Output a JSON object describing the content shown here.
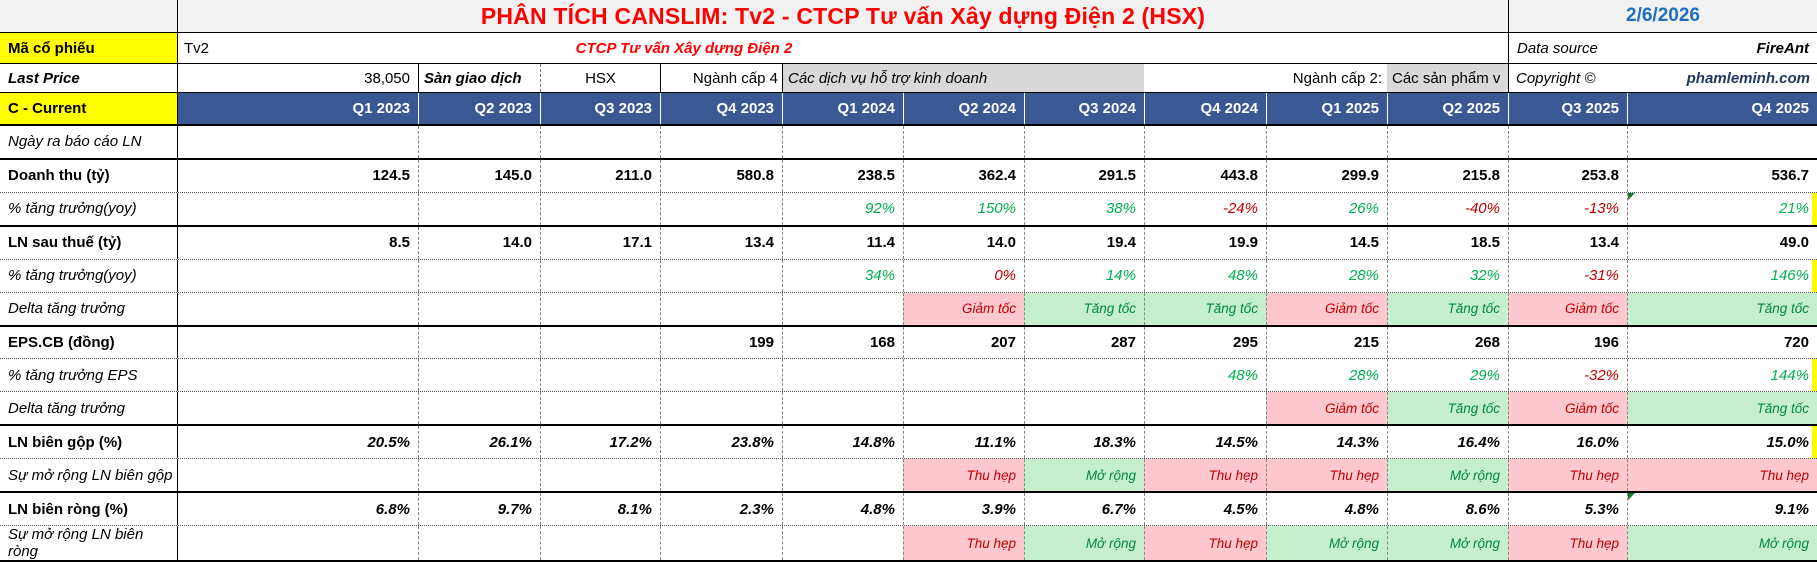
{
  "title": "PHÂN TÍCH CANSLIM: Tv2 - CTCP Tư vấn Xây dựng Điện 2 (HSX)",
  "report_date": "2/6/2026",
  "info": {
    "ticker_label": "Mã cổ phiếu",
    "ticker": "Tv2",
    "company_name": "CTCP Tư vấn Xây dựng Điện 2",
    "data_source_label": "Data source",
    "data_source": "FireAnt",
    "last_price_label": "Last Price",
    "last_price": "38,050",
    "exchange_label": "Sàn giao dịch",
    "exchange": "HSX",
    "industry4_label": "Ngành cấp 4",
    "industry4": "Các dịch vụ hỗ trợ kinh doanh",
    "industry2_label": "Ngành cấp 2:",
    "industry2": "Các sản phẩm v",
    "copyright_label": "Copyright ©",
    "copyright_owner": "phamleminh.com"
  },
  "colors": {
    "title_red": "#FF0000",
    "date_blue": "#1F6FC0",
    "header_blue": "#3A5894",
    "highlight_yellow": "#FFFF00",
    "gray_cell": "#D9D9D9",
    "positive_green": "#00B050",
    "negative_red": "#C00000",
    "good_bg": "#C6EFCE",
    "bad_bg": "#FFC7CE"
  },
  "table": {
    "section_label": "C - Current",
    "quarters": [
      "Q1 2023",
      "Q2 2023",
      "Q3 2023",
      "Q4 2023",
      "Q1 2024",
      "Q2 2024",
      "Q3 2024",
      "Q4 2024",
      "Q1 2025",
      "Q2 2025",
      "Q3 2025",
      "Q4 2025"
    ],
    "rows": [
      {
        "key": "ngay-ra-bao-cao-ln",
        "label": "Ngày ra báo cáo LN",
        "label_style": "italic",
        "value_style": "growth",
        "border_top": "thin",
        "cells": [
          {
            "t": ""
          },
          {
            "t": ""
          },
          {
            "t": ""
          },
          {
            "t": ""
          },
          {
            "t": ""
          },
          {
            "t": ""
          },
          {
            "t": ""
          },
          {
            "t": ""
          },
          {
            "t": ""
          },
          {
            "t": ""
          },
          {
            "t": ""
          },
          {
            "t": ""
          }
        ]
      },
      {
        "key": "doanh-thu",
        "label": "Doanh thu (tỷ)",
        "label_style": "bold",
        "value_style": "value",
        "border_top": "thick",
        "cells": [
          {
            "t": "124.5"
          },
          {
            "t": "145.0"
          },
          {
            "t": "211.0"
          },
          {
            "t": "580.8"
          },
          {
            "t": "238.5"
          },
          {
            "t": "362.4"
          },
          {
            "t": "291.5"
          },
          {
            "t": "443.8"
          },
          {
            "t": "299.9"
          },
          {
            "t": "215.8"
          },
          {
            "t": "253.8"
          },
          {
            "t": "536.7"
          }
        ]
      },
      {
        "key": "tang-truong-doanh-thu",
        "label": "% tăng trưởng(yoy)",
        "label_style": "italic",
        "value_style": "growth",
        "border_top": "dotted",
        "sliver": true,
        "cells": [
          {
            "t": ""
          },
          {
            "t": ""
          },
          {
            "t": ""
          },
          {
            "t": ""
          },
          {
            "t": "92%",
            "s": "g"
          },
          {
            "t": "150%",
            "s": "g"
          },
          {
            "t": "38%",
            "s": "g"
          },
          {
            "t": "-24%",
            "s": "r"
          },
          {
            "t": "26%",
            "s": "g"
          },
          {
            "t": "-40%",
            "s": "r"
          },
          {
            "t": "-13%",
            "s": "r"
          },
          {
            "t": "21%",
            "s": "g",
            "m": true
          }
        ]
      },
      {
        "key": "ln-sau-thue",
        "label": "LN sau thuế (tỷ)",
        "label_style": "bold",
        "value_style": "value",
        "border_top": "thick",
        "cells": [
          {
            "t": "8.5"
          },
          {
            "t": "14.0"
          },
          {
            "t": "17.1"
          },
          {
            "t": "13.4"
          },
          {
            "t": "11.4"
          },
          {
            "t": "14.0"
          },
          {
            "t": "19.4"
          },
          {
            "t": "19.9"
          },
          {
            "t": "14.5"
          },
          {
            "t": "18.5"
          },
          {
            "t": "13.4"
          },
          {
            "t": "49.0"
          }
        ]
      },
      {
        "key": "tang-truong-ln",
        "label": "% tăng trưởng(yoy)",
        "label_style": "italic",
        "value_style": "growth",
        "border_top": "dotted",
        "sliver": true,
        "cells": [
          {
            "t": ""
          },
          {
            "t": ""
          },
          {
            "t": ""
          },
          {
            "t": ""
          },
          {
            "t": "34%",
            "s": "g"
          },
          {
            "t": "0%",
            "s": "r"
          },
          {
            "t": "14%",
            "s": "g"
          },
          {
            "t": "48%",
            "s": "g"
          },
          {
            "t": "28%",
            "s": "g"
          },
          {
            "t": "32%",
            "s": "g"
          },
          {
            "t": "-31%",
            "s": "r"
          },
          {
            "t": "146%",
            "s": "g"
          }
        ]
      },
      {
        "key": "delta-tang-truong-ln",
        "label": "Delta tăng trưởng",
        "label_style": "italic",
        "value_style": "delta",
        "border_top": "dotted",
        "cells": [
          {
            "t": ""
          },
          {
            "t": ""
          },
          {
            "t": ""
          },
          {
            "t": ""
          },
          {
            "t": ""
          },
          {
            "t": "Giảm tốc",
            "s": "R"
          },
          {
            "t": "Tăng tốc",
            "s": "G"
          },
          {
            "t": "Tăng tốc",
            "s": "G"
          },
          {
            "t": "Giảm tốc",
            "s": "R"
          },
          {
            "t": "Tăng tốc",
            "s": "G"
          },
          {
            "t": "Giảm tốc",
            "s": "R"
          },
          {
            "t": "Tăng tốc",
            "s": "G"
          }
        ]
      },
      {
        "key": "eps-cb",
        "label": "EPS.CB (đồng)",
        "label_style": "bold",
        "value_style": "value",
        "border_top": "thick",
        "cells": [
          {
            "t": ""
          },
          {
            "t": ""
          },
          {
            "t": ""
          },
          {
            "t": "199"
          },
          {
            "t": "168"
          },
          {
            "t": "207"
          },
          {
            "t": "287"
          },
          {
            "t": "295"
          },
          {
            "t": "215"
          },
          {
            "t": "268"
          },
          {
            "t": "196"
          },
          {
            "t": "720"
          }
        ]
      },
      {
        "key": "tang-truong-eps",
        "label": "% tăng trưởng EPS",
        "label_style": "italic",
        "value_style": "growth",
        "border_top": "dotted",
        "sliver": true,
        "cells": [
          {
            "t": ""
          },
          {
            "t": ""
          },
          {
            "t": ""
          },
          {
            "t": ""
          },
          {
            "t": ""
          },
          {
            "t": ""
          },
          {
            "t": ""
          },
          {
            "t": "48%",
            "s": "g"
          },
          {
            "t": "28%",
            "s": "g"
          },
          {
            "t": "29%",
            "s": "g"
          },
          {
            "t": "-32%",
            "s": "r"
          },
          {
            "t": "144%",
            "s": "g"
          }
        ]
      },
      {
        "key": "delta-tang-truong-eps",
        "label": "Delta tăng trưởng",
        "label_style": "italic",
        "value_style": "delta",
        "border_top": "dotted",
        "cells": [
          {
            "t": ""
          },
          {
            "t": ""
          },
          {
            "t": ""
          },
          {
            "t": ""
          },
          {
            "t": ""
          },
          {
            "t": ""
          },
          {
            "t": ""
          },
          {
            "t": ""
          },
          {
            "t": "Giảm tốc",
            "s": "R"
          },
          {
            "t": "Tăng tốc",
            "s": "G"
          },
          {
            "t": "Giảm tốc",
            "s": "R"
          },
          {
            "t": "Tăng tốc",
            "s": "G"
          }
        ]
      },
      {
        "key": "ln-bien-gop",
        "label": "LN biên gộp (%)",
        "label_style": "bold",
        "value_style": "margin",
        "border_top": "thick",
        "sliver": true,
        "cells": [
          {
            "t": "20.5%"
          },
          {
            "t": "26.1%"
          },
          {
            "t": "17.2%"
          },
          {
            "t": "23.8%"
          },
          {
            "t": "14.8%"
          },
          {
            "t": "11.1%"
          },
          {
            "t": "18.3%"
          },
          {
            "t": "14.5%"
          },
          {
            "t": "14.3%"
          },
          {
            "t": "16.4%"
          },
          {
            "t": "16.0%"
          },
          {
            "t": "15.0%"
          }
        ]
      },
      {
        "key": "mo-rong-bien-gop",
        "label": "Sự mở rộng LN biên gộp",
        "label_style": "italic",
        "value_style": "delta",
        "border_top": "dotted",
        "cells": [
          {
            "t": ""
          },
          {
            "t": ""
          },
          {
            "t": ""
          },
          {
            "t": ""
          },
          {
            "t": ""
          },
          {
            "t": "Thu hẹp",
            "s": "R"
          },
          {
            "t": "Mở rộng",
            "s": "G"
          },
          {
            "t": "Thu hẹp",
            "s": "R"
          },
          {
            "t": "Thu hẹp",
            "s": "R"
          },
          {
            "t": "Mở rộng",
            "s": "G"
          },
          {
            "t": "Thu hẹp",
            "s": "R"
          },
          {
            "t": "Thu hẹp",
            "s": "R"
          }
        ]
      },
      {
        "key": "ln-bien-rong",
        "label": "LN biên ròng (%)",
        "label_style": "bold",
        "value_style": "margin",
        "border_top": "thick",
        "cells": [
          {
            "t": "6.8%"
          },
          {
            "t": "9.7%"
          },
          {
            "t": "8.1%"
          },
          {
            "t": "2.3%"
          },
          {
            "t": "4.8%"
          },
          {
            "t": "3.9%"
          },
          {
            "t": "6.7%"
          },
          {
            "t": "4.5%"
          },
          {
            "t": "4.8%"
          },
          {
            "t": "8.6%"
          },
          {
            "t": "5.3%"
          },
          {
            "t": "9.1%",
            "m": true
          }
        ]
      },
      {
        "key": "mo-rong-bien-rong",
        "label": "Sự mở rộng LN biên ròng",
        "label_style": "italic",
        "value_style": "delta",
        "border_top": "dotted",
        "cells": [
          {
            "t": ""
          },
          {
            "t": ""
          },
          {
            "t": ""
          },
          {
            "t": ""
          },
          {
            "t": ""
          },
          {
            "t": "Thu hẹp",
            "s": "R"
          },
          {
            "t": "Mở rộng",
            "s": "G"
          },
          {
            "t": "Thu hẹp",
            "s": "R"
          },
          {
            "t": "Mở rộng",
            "s": "G"
          },
          {
            "t": "Mở rộng",
            "s": "G"
          },
          {
            "t": "Thu hẹp",
            "s": "R"
          },
          {
            "t": "Mở rộng",
            "s": "G"
          }
        ]
      }
    ]
  }
}
